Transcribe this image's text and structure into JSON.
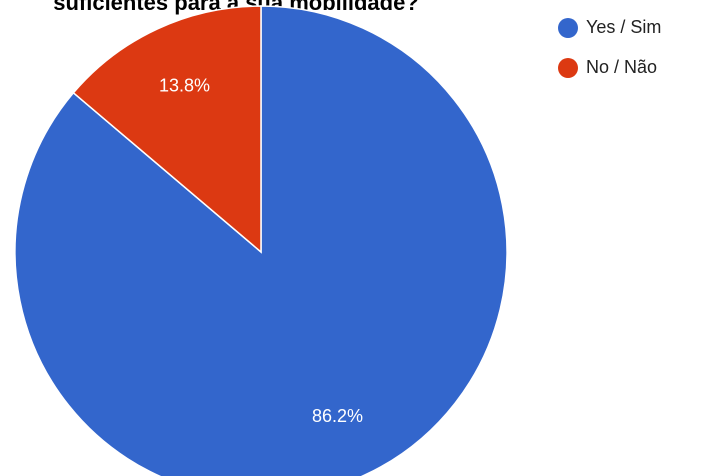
{
  "chart_data": {
    "type": "pie",
    "title": "suficientes para a sua mobilidade?",
    "categories": [
      "Yes / Sim",
      "No / Não"
    ],
    "values": [
      86.2,
      13.8
    ],
    "value_labels": [
      "86.2%",
      "13.8%"
    ],
    "colors": [
      "#3366cc",
      "#dc3912"
    ],
    "legend": "right"
  }
}
